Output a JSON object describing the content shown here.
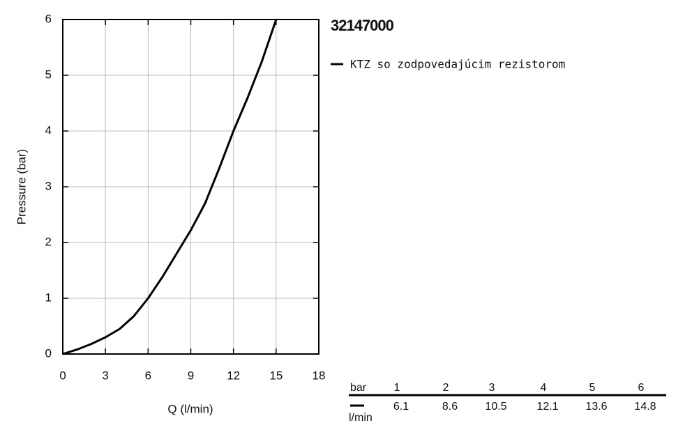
{
  "chart_data": {
    "type": "line",
    "title": "32147000",
    "xlabel": "Q (l/min)",
    "ylabel": "Pressure (bar)",
    "x": [
      0,
      1,
      2,
      3,
      4,
      5,
      6,
      7,
      8,
      9,
      10,
      11,
      12,
      13,
      14,
      15
    ],
    "series": [
      {
        "name": "KTZ so zodpovedajúcim rezistorom",
        "color": "#000000",
        "values": [
          0,
          0.08,
          0.18,
          0.3,
          0.45,
          0.68,
          1.0,
          1.38,
          1.8,
          2.22,
          2.7,
          3.33,
          4.0,
          4.6,
          5.25,
          6.0
        ]
      }
    ],
    "xlim": [
      0,
      18
    ],
    "xticks": [
      0,
      3,
      6,
      9,
      12,
      15,
      18
    ],
    "ylim": [
      0,
      6
    ],
    "yticks": [
      0,
      1,
      2,
      3,
      4,
      5,
      6
    ],
    "grid": true
  },
  "table": {
    "header": "bar",
    "columns": [
      1,
      2,
      3,
      4,
      5,
      6
    ],
    "unit": "l/min",
    "values": [
      6.1,
      8.6,
      10.5,
      12.1,
      13.6,
      14.8
    ]
  }
}
